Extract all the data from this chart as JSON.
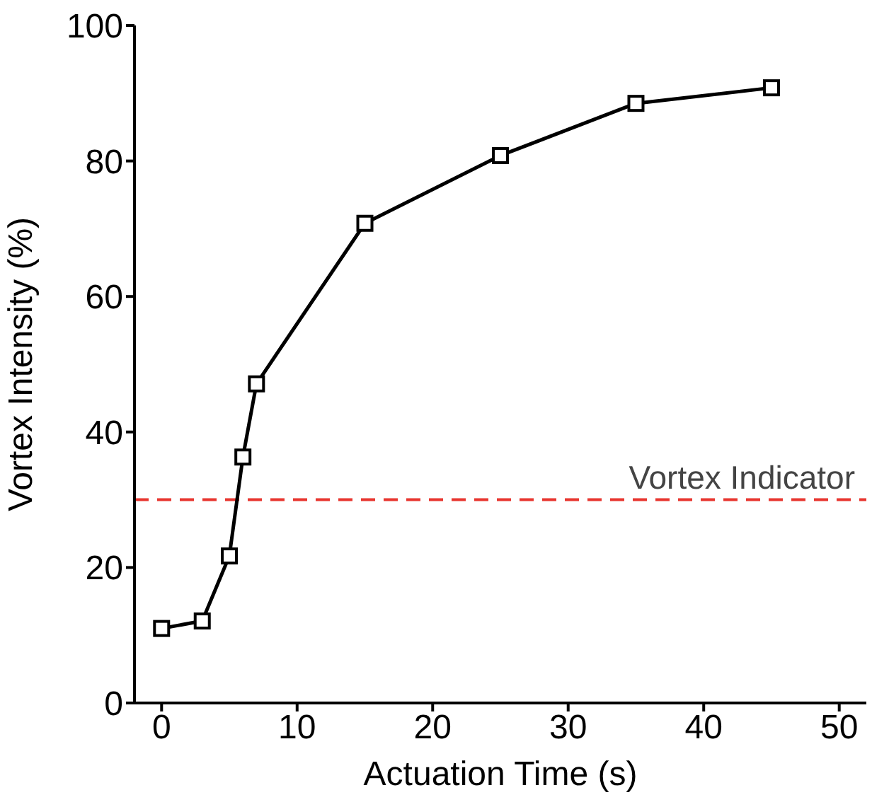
{
  "chart_data": {
    "type": "line",
    "xlabel": "Actuation Time (s)",
    "ylabel": "Vortex Intensity (%)",
    "x": [
      0,
      3,
      5,
      6,
      7,
      15,
      25,
      35,
      45
    ],
    "series": [
      {
        "color": "#000000",
        "values": [
          11.0,
          12.1,
          21.7,
          36.3,
          47.1,
          70.8,
          80.8,
          88.5,
          90.8
        ]
      }
    ],
    "xlim": [
      -2,
      52
    ],
    "xticks": [
      0,
      10,
      20,
      30,
      40,
      50
    ],
    "ylim": [
      0,
      100
    ],
    "yticks": [
      0,
      20,
      40,
      60,
      80,
      100
    ],
    "marker": "square",
    "line_style": "solid",
    "grid": false,
    "legend": false,
    "ref_lines": [
      {
        "axis": "y",
        "value": 30,
        "label": "Vortex Indicator",
        "color": "#e8352f",
        "line_style": "dashed"
      }
    ]
  }
}
